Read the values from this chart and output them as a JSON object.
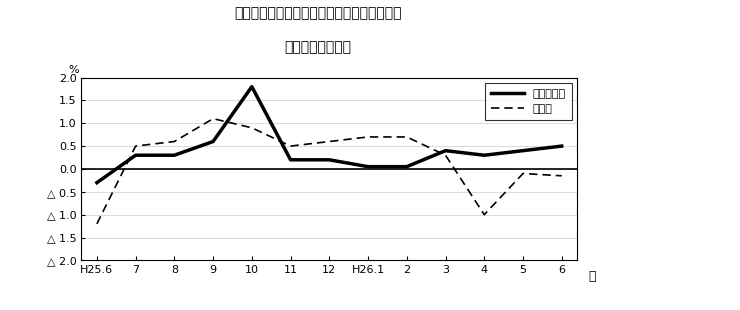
{
  "title_line1": "第３図　常用雇用指数　対前年同月比の推移",
  "title_line2": "（規樯５人以上）",
  "xlabel": "月",
  "ylabel": "%",
  "ylim": [
    -2.0,
    2.0
  ],
  "yticks": [
    2.0,
    1.5,
    1.0,
    0.5,
    0.0,
    -0.5,
    -1.0,
    -1.5,
    -2.0
  ],
  "ytick_labels": [
    "2.0",
    "1.5",
    "1.0",
    "0.5",
    "0.0",
    "△ 0.5",
    "△ 1.0",
    "△ 1.5",
    "△ 2.0"
  ],
  "x_labels": [
    "H25.6",
    "7",
    "8",
    "9",
    "10",
    "11",
    "12",
    "H26.1",
    "2",
    "3",
    "4",
    "5",
    "6"
  ],
  "series1_name": "調査産業計",
  "series1_values": [
    -0.3,
    0.3,
    0.3,
    0.6,
    1.8,
    0.2,
    0.2,
    0.05,
    0.05,
    0.4,
    0.3,
    0.4,
    0.5
  ],
  "series2_name": "製造業",
  "series2_values": [
    -1.2,
    0.5,
    0.6,
    1.1,
    0.9,
    0.5,
    0.6,
    0.7,
    0.7,
    0.3,
    -1.0,
    -0.1,
    -0.15
  ],
  "series1_color": "#000000",
  "series2_color": "#000000",
  "series1_linewidth": 2.5,
  "series2_linewidth": 1.2,
  "background_color": "#ffffff",
  "grid_color": "#cccccc",
  "zero_line_color": "#000000"
}
